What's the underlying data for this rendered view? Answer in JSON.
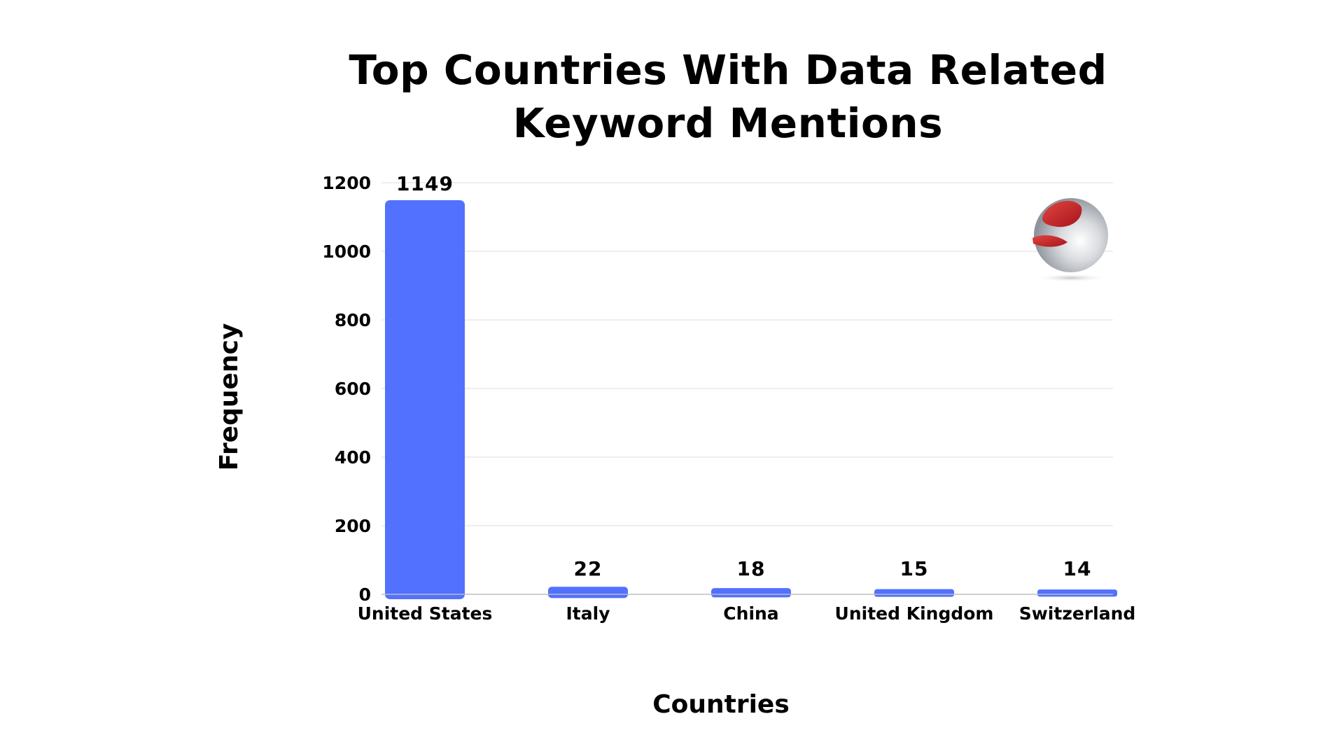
{
  "chart_data": {
    "type": "bar",
    "title": "Top Countries With Data Related Keyword Mentions",
    "title_lines": [
      "Top Countries With Data Related",
      "Keyword Mentions"
    ],
    "xlabel": "Countries",
    "ylabel": "Frequency",
    "categories": [
      "United States",
      "Italy",
      "China",
      "United Kingdom",
      "Switzerland"
    ],
    "values": [
      1149,
      22,
      18,
      15,
      14
    ],
    "data_labels": [
      "1149",
      "22",
      "18",
      "15",
      "14"
    ],
    "ylim": [
      0,
      1200
    ],
    "yticks": [
      0,
      200,
      400,
      600,
      800,
      1000,
      1200
    ],
    "ytick_labels": [
      "0",
      "200",
      "400",
      "600",
      "800",
      "1000",
      "1200"
    ],
    "grid": true,
    "legend": "none",
    "colors": {
      "bar": "#5271FF",
      "grid": "#E3E3E3",
      "axis": "#BDBDBD",
      "text": "#000000",
      "background": "#FFFFFF",
      "logo_red": "#C8202A",
      "logo_gray": "#B9BCC2"
    },
    "logo_icon": "red-swoosh-sphere-logo"
  }
}
